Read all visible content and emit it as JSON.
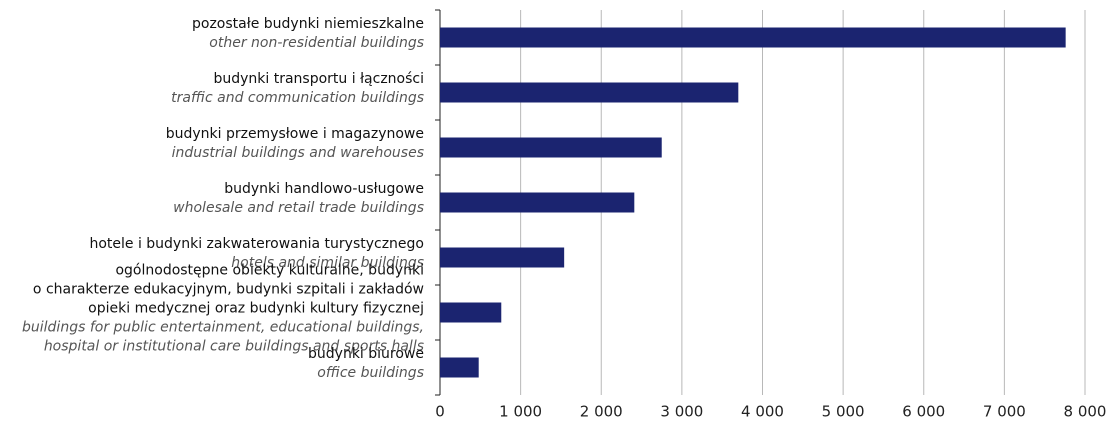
{
  "chart_data": {
    "type": "bar",
    "orientation": "horizontal",
    "categories": [
      {
        "label": [
          "pozostałe budynki niemieszkalne"
        ],
        "label_en": [
          "other non-residential buildings"
        ]
      },
      {
        "label": [
          "budynki transportu i łączności"
        ],
        "label_en": [
          "traffic and communication buildings"
        ]
      },
      {
        "label": [
          "budynki przemysłowe i magazynowe"
        ],
        "label_en": [
          "industrial buildings and warehouses"
        ]
      },
      {
        "label": [
          "budynki handlowo-usługowe"
        ],
        "label_en": [
          "wholesale and retail trade buildings"
        ]
      },
      {
        "label": [
          "hotele i budynki zakwaterowania turystycznego"
        ],
        "label_en": [
          "hotels and similar buildings"
        ]
      },
      {
        "label": [
          "ogólnodostępne obiekty kulturalne, budynki",
          "o charakterze edukacyjnym, budynki szpitali i zakładów",
          "opieki medycznej oraz budynki kultury fizycznej"
        ],
        "label_en": [
          "buildings for public entertainment, educational buildings,",
          "hospital or institutional care buildings and sports halls"
        ]
      },
      {
        "label": [
          "budynki biurowe"
        ],
        "label_en": [
          "office buildings"
        ]
      }
    ],
    "values": [
      7760,
      3700,
      2750,
      2410,
      1540,
      760,
      480
    ],
    "color": "#1b2470",
    "xlim": [
      0,
      8000
    ],
    "xticks": [
      0,
      {
        "value": 1000,
        "label": "1 000"
      },
      {
        "value": 2000,
        "label": "2 000"
      },
      {
        "value": 3000,
        "label": "3 000"
      },
      {
        "value": 4000,
        "label": "4 000"
      },
      {
        "value": 5000,
        "label": "5 000"
      },
      {
        "value": 6000,
        "label": "6 000"
      },
      {
        "value": 7000,
        "label": "7 000"
      },
      {
        "value": 8000,
        "label": "8 000"
      }
    ],
    "grid": true
  }
}
